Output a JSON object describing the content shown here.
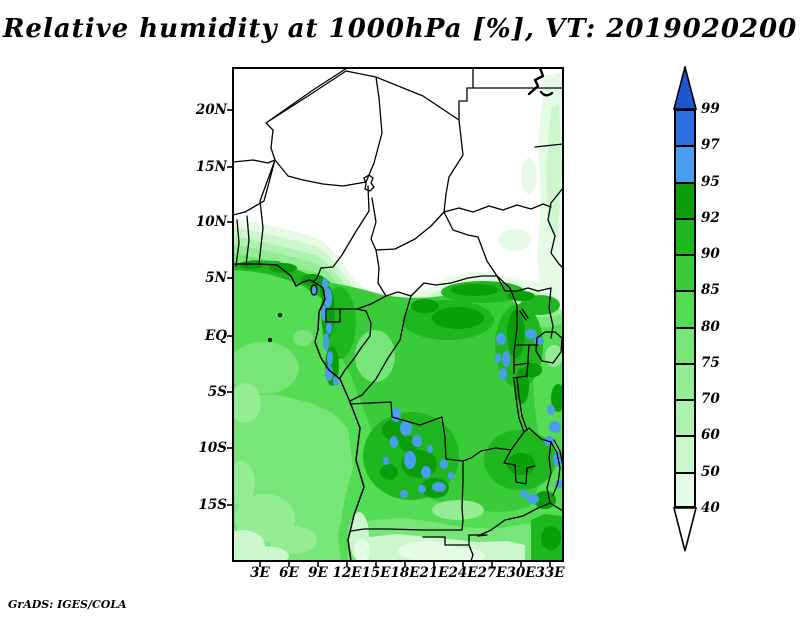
{
  "title": "Relative humidity at 1000hPa [%], VT: 2019020200",
  "attribution": "GrADS: IGES/COLA",
  "map": {
    "lat_labels": [
      "20N",
      "15N",
      "10N",
      "5N",
      "EQ",
      "5S",
      "10S",
      "15S"
    ],
    "lon_labels": [
      "3E",
      "6E",
      "9E",
      "12E",
      "15E",
      "18E",
      "21E",
      "24E",
      "27E",
      "30E",
      "33E"
    ]
  },
  "colorbar": {
    "labels": [
      "99",
      "97",
      "95",
      "92",
      "90",
      "85",
      "80",
      "75",
      "70",
      "60",
      "50",
      "40"
    ],
    "segment_colors": [
      "#2d6fe3",
      "#4a9def",
      "#0b9e0b",
      "#1fb71f",
      "#3acb3a",
      "#55dc55",
      "#78e578",
      "#94ec94",
      "#aff2af",
      "#ccf7cc",
      "#e6fbe6"
    ],
    "arrow_top_color": "#1e57cf",
    "arrow_bottom_color": "#ffffff"
  },
  "palette": {
    "cA": "#1e57cf",
    "c97": "#2d6fe3",
    "c95": "#4a9def",
    "c92": "#0b9e0b",
    "c90": "#1fb71f",
    "c85": "#3acb3a",
    "c80": "#55dc55",
    "c75": "#78e578",
    "c70": "#94ec94",
    "c60": "#aff2af",
    "c50": "#ccf7cc",
    "c40": "#e6fbe6",
    "dry": "#ffffff",
    "line": "#000000"
  },
  "chart_data": {
    "type": "heatmap",
    "title": "Relative humidity at 1000hPa [%], VT: 2019020200",
    "variable": "Relative humidity",
    "level": "1000hPa",
    "units": "%",
    "valid_time": "2019020200",
    "region": {
      "lat_ticks": [
        "20N",
        "15N",
        "10N",
        "5N",
        "EQ",
        "5S",
        "10S",
        "15S"
      ],
      "lon_ticks": [
        "3E",
        "6E",
        "9E",
        "12E",
        "15E",
        "18E",
        "21E",
        "24E",
        "27E",
        "30E",
        "33E"
      ]
    },
    "colorbar_levels": [
      40,
      50,
      60,
      70,
      75,
      80,
      85,
      90,
      92,
      95,
      97,
      99
    ],
    "colorbar_colors": [
      "#e6fbe6",
      "#ccf7cc",
      "#aff2af",
      "#94ec94",
      "#78e578",
      "#55dc55",
      "#3acb3a",
      "#1fb71f",
      "#0b9e0b",
      "#4a9def",
      "#2d6fe3",
      "#1e57cf"
    ],
    "legend_position": "right",
    "notes": "White (<40%) over Sahara/Sahel north of ~8N; green field (70-92%) over Gulf of Guinea, Congo basin, Angola and Zambia; blue spots (>95%) along Cameroon-Gabon coast, central Angola and East African rift lakes"
  }
}
